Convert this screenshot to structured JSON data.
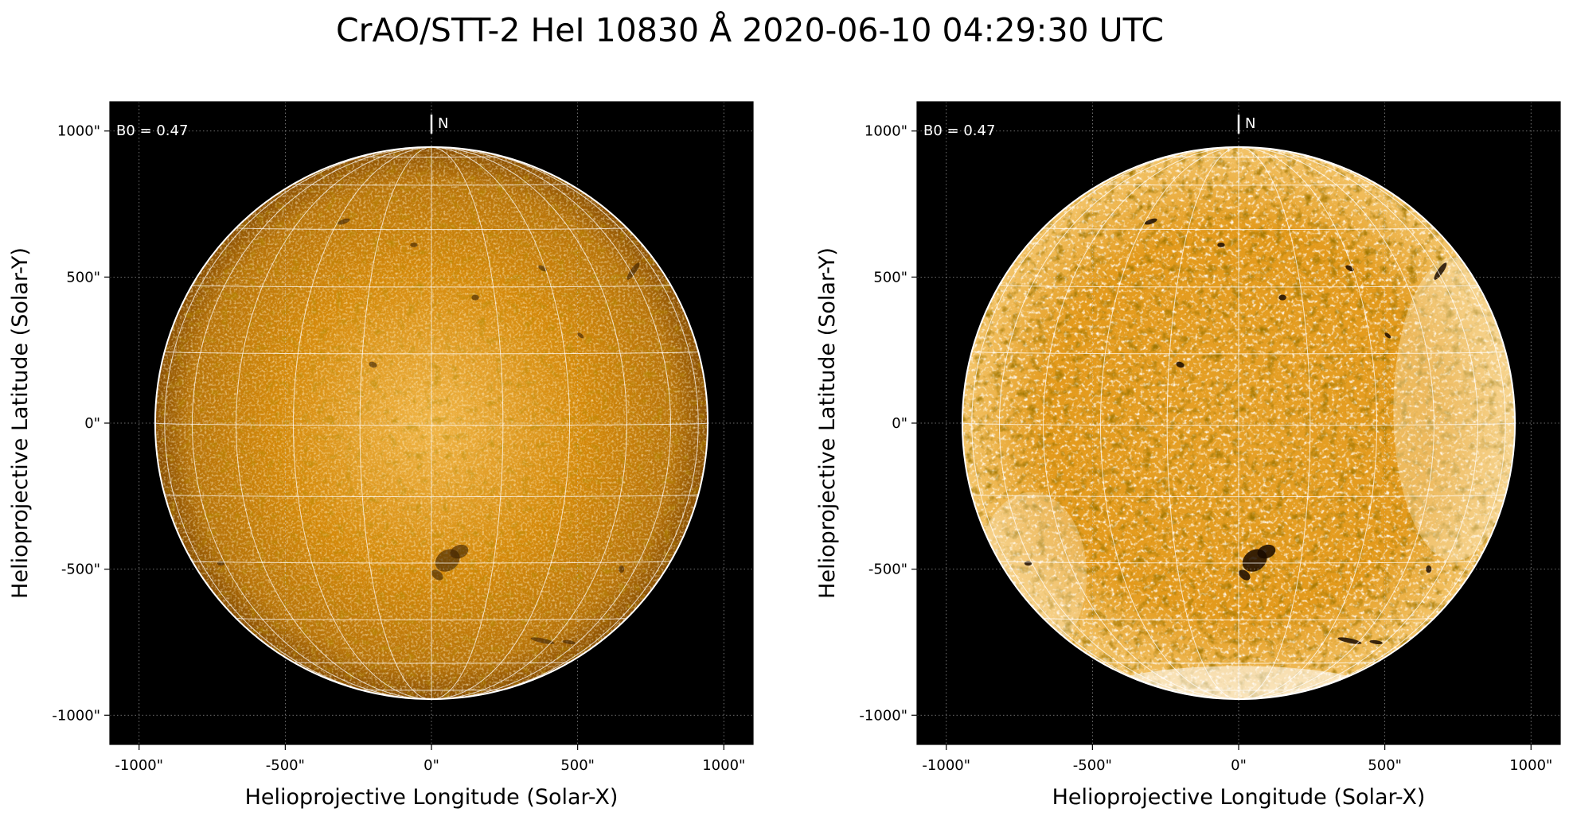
{
  "figure": {
    "title": "CrAO/STT-2 HeI 10830 Å 2020-06-10 04:29:30 UTC"
  },
  "colors": {
    "background": "#000000",
    "disk_dark": "#8a4f02",
    "disk_mid": "#d58a0b",
    "disk_light": "#f0b547",
    "grid": "#ffffff",
    "limb": "#ffffff"
  },
  "panels": [
    {
      "id": "left",
      "style": "original",
      "overlay": {
        "b0_label": "B0 = 0.47",
        "north_label": "N"
      },
      "xlabel": "Helioprojective Longitude (Solar-X)",
      "ylabel": "Helioprojective Latitude (Solar-Y)",
      "xticks": [
        "-1000\"",
        "-500\"",
        "0\"",
        "500\"",
        "1000\""
      ],
      "yticks": [
        "1000\"",
        "500\"",
        "0\"",
        "-500\"",
        "-1000\""
      ]
    },
    {
      "id": "right",
      "style": "contrast-enhanced",
      "overlay": {
        "b0_label": "B0 = 0.47",
        "north_label": "N"
      },
      "xlabel": "Helioprojective Longitude (Solar-X)",
      "ylabel": "Helioprojective Latitude (Solar-Y)",
      "xticks": [
        "-1000\"",
        "-500\"",
        "0\"",
        "500\"",
        "1000\""
      ],
      "yticks": [
        "1000\"",
        "500\"",
        "0\"",
        "-500\"",
        "-1000\""
      ]
    }
  ],
  "axes": {
    "x_values": [
      -1000,
      -500,
      0,
      500,
      1000
    ],
    "y_values": [
      1000,
      500,
      0,
      -500,
      -1000
    ],
    "xlim": [
      -1100,
      1100
    ],
    "ylim": [
      -1100,
      1100
    ],
    "solar_radius_arcsec": 945
  }
}
